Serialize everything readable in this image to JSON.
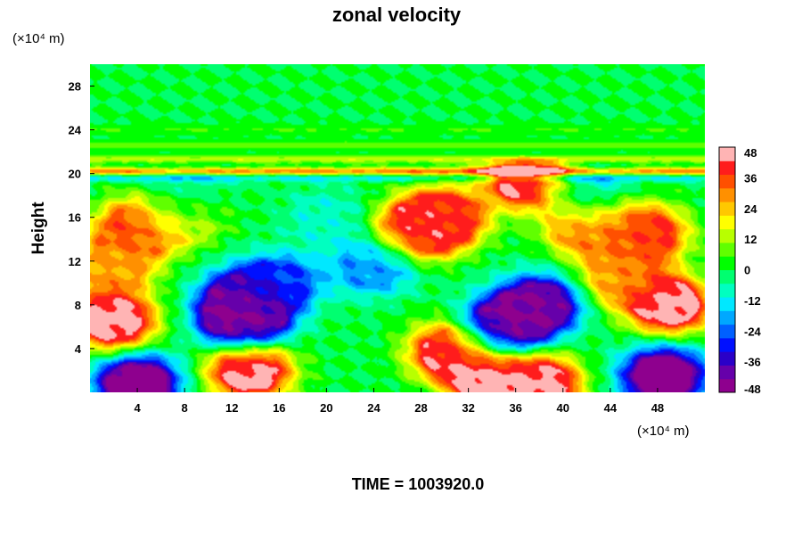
{
  "chart_data": {
    "type": "heatmap",
    "title": "zonal velocity",
    "ylabel": "Height",
    "x_unit_label": "(×10⁴ m)",
    "y_unit_label": "(×10⁴ m)",
    "footer": "TIME = 1003920.0",
    "xlim": [
      0,
      52
    ],
    "ylim": [
      0,
      30
    ],
    "x_ticks": [
      "4",
      "8",
      "12",
      "16",
      "20",
      "24",
      "28",
      "32",
      "36",
      "40",
      "44",
      "48"
    ],
    "y_ticks": [
      "4",
      "8",
      "12",
      "16",
      "20",
      "24",
      "28"
    ],
    "colorbar": {
      "range": [
        -48,
        48
      ],
      "ticks": [
        "48",
        "36",
        "24",
        "12",
        "0",
        "-12",
        "-24",
        "-36",
        "-48"
      ],
      "colors": [
        "#8e008e",
        "#6600aa",
        "#2a00c8",
        "#0010ff",
        "#0060ff",
        "#00a8ff",
        "#00e8ff",
        "#00ffc0",
        "#00ff70",
        "#00ff00",
        "#60ff00",
        "#b8ff00",
        "#ffff00",
        "#ffc800",
        "#ff9000",
        "#ff5000",
        "#ff1c1c",
        "#ffb4b4"
      ]
    },
    "features": [
      {
        "x": 2,
        "y": 6.5,
        "value": 46
      },
      {
        "x": 4,
        "y": 15,
        "value": 38
      },
      {
        "x": 13.5,
        "y": 2,
        "value": 46
      },
      {
        "x": 13,
        "y": 6.5,
        "value": -48
      },
      {
        "x": 13,
        "y": 8.5,
        "value": -40
      },
      {
        "x": 16,
        "y": 10,
        "value": -25
      },
      {
        "x": 24,
        "y": 11.5,
        "value": -20
      },
      {
        "x": 30.5,
        "y": 3.7,
        "value": 42
      },
      {
        "x": 28,
        "y": 15,
        "value": 44
      },
      {
        "x": 30,
        "y": 16,
        "value": 36
      },
      {
        "x": 35,
        "y": 6,
        "value": -46
      },
      {
        "x": 38,
        "y": 8,
        "value": -42
      },
      {
        "x": 34,
        "y": 1,
        "value": 48
      },
      {
        "x": 38,
        "y": 0.8,
        "value": 44
      },
      {
        "x": 37,
        "y": 19.5,
        "value": 46
      },
      {
        "x": 42,
        "y": 15,
        "value": 30
      },
      {
        "x": 47,
        "y": 14.5,
        "value": 38
      },
      {
        "x": 49,
        "y": 8,
        "value": 46
      },
      {
        "x": 48.5,
        "y": 1.5,
        "value": -48
      },
      {
        "x": 4,
        "y": 0.8,
        "value": -48
      },
      {
        "x": 2,
        "y": 11.5,
        "value": 26
      },
      {
        "x": 8,
        "y": 16,
        "value": 15
      },
      {
        "x": 45,
        "y": 10.5,
        "value": 28
      },
      {
        "x": 42,
        "y": 18.5,
        "value": -12
      },
      {
        "x": 20,
        "y": 16,
        "value": -8
      },
      {
        "x": 8,
        "y": 18,
        "value": -10
      }
    ],
    "bands": [
      {
        "y": 20.2,
        "value": 34
      },
      {
        "y": 19.6,
        "value": -14
      },
      {
        "y": 21.3,
        "value": 16
      },
      {
        "y": 22.6,
        "value": 10
      },
      {
        "y": 24.0,
        "value": 6
      }
    ]
  }
}
